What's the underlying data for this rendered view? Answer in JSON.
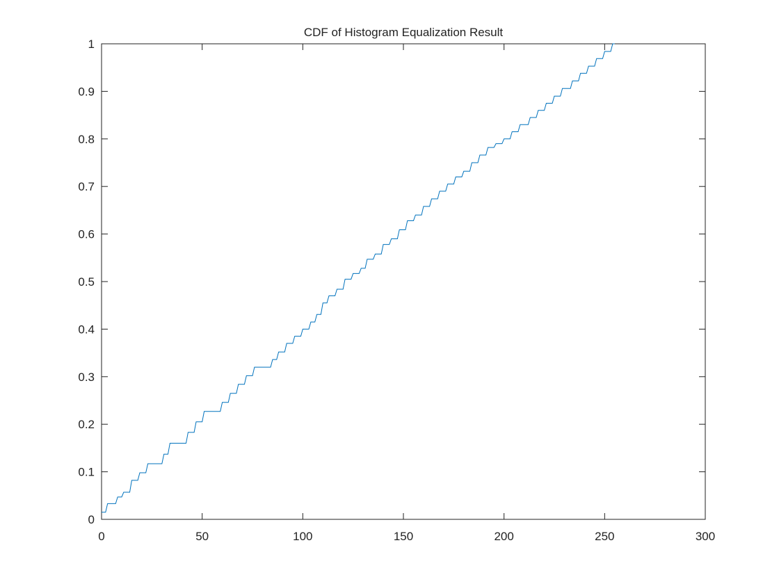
{
  "chart_data": {
    "type": "line",
    "title": "CDF of Histogram Equalization Result",
    "xlim": [
      0,
      300
    ],
    "xticks": [
      0,
      50,
      100,
      150,
      200,
      250,
      300
    ],
    "ylim": [
      0,
      1
    ],
    "yticks": [
      0,
      0.1,
      0.2,
      0.3,
      0.4,
      0.5,
      0.6,
      0.7,
      0.8,
      0.9,
      1
    ],
    "series": [
      {
        "color": "#0072bd",
        "x": [
          0,
          2,
          3,
          7,
          8,
          10,
          11,
          14,
          15,
          18,
          19,
          22,
          23,
          30,
          31,
          33,
          34,
          42,
          43,
          46,
          47,
          50,
          51,
          59,
          60,
          63,
          64,
          67,
          68,
          71,
          72,
          75,
          76,
          84,
          85,
          87,
          88,
          91,
          92,
          95,
          96,
          99,
          100,
          103,
          104,
          106,
          107,
          109,
          110,
          112,
          113,
          116,
          117,
          120,
          121,
          124,
          125,
          128,
          129,
          131,
          132,
          135,
          136,
          139,
          140,
          143,
          144,
          147,
          148,
          151,
          152,
          155,
          156,
          159,
          160,
          163,
          164,
          167,
          168,
          171,
          172,
          175,
          176,
          179,
          180,
          183,
          184,
          187,
          188,
          191,
          192,
          195,
          196,
          199,
          200,
          203,
          204,
          207,
          208,
          212,
          213,
          216,
          217,
          220,
          221,
          224,
          225,
          228,
          229,
          233,
          234,
          237,
          238,
          241,
          242,
          245,
          246,
          249,
          250,
          253,
          254,
          255
        ],
        "values": [
          0.015,
          0.015,
          0.033,
          0.033,
          0.047,
          0.047,
          0.057,
          0.057,
          0.082,
          0.082,
          0.098,
          0.098,
          0.117,
          0.117,
          0.137,
          0.137,
          0.16,
          0.16,
          0.183,
          0.183,
          0.205,
          0.205,
          0.227,
          0.227,
          0.246,
          0.246,
          0.265,
          0.265,
          0.284,
          0.284,
          0.302,
          0.302,
          0.32,
          0.32,
          0.336,
          0.336,
          0.352,
          0.352,
          0.37,
          0.37,
          0.385,
          0.385,
          0.4,
          0.4,
          0.415,
          0.415,
          0.431,
          0.431,
          0.455,
          0.455,
          0.47,
          0.47,
          0.484,
          0.484,
          0.505,
          0.505,
          0.517,
          0.517,
          0.528,
          0.528,
          0.547,
          0.547,
          0.558,
          0.558,
          0.578,
          0.578,
          0.59,
          0.59,
          0.609,
          0.609,
          0.628,
          0.628,
          0.64,
          0.64,
          0.658,
          0.658,
          0.674,
          0.674,
          0.69,
          0.69,
          0.705,
          0.705,
          0.72,
          0.72,
          0.732,
          0.732,
          0.75,
          0.75,
          0.766,
          0.766,
          0.782,
          0.782,
          0.79,
          0.79,
          0.8,
          0.8,
          0.815,
          0.815,
          0.83,
          0.83,
          0.845,
          0.845,
          0.86,
          0.86,
          0.875,
          0.875,
          0.89,
          0.89,
          0.906,
          0.906,
          0.922,
          0.922,
          0.938,
          0.938,
          0.953,
          0.953,
          0.969,
          0.969,
          0.984,
          0.984,
          1,
          1
        ]
      }
    ]
  }
}
